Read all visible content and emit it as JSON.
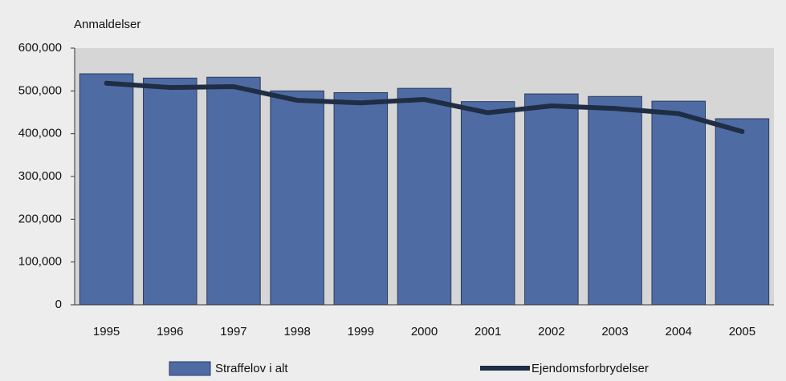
{
  "chart_data": {
    "type": "bar_line",
    "y_axis_label": "Anmaldelser",
    "categories": [
      "1995",
      "1996",
      "1997",
      "1998",
      "1999",
      "2000",
      "2001",
      "2002",
      "2003",
      "2004",
      "2005"
    ],
    "series": [
      {
        "name": "Straffelov i alt",
        "type": "bar",
        "color": "#4f6ba3",
        "values": [
          540000,
          530000,
          532000,
          500000,
          496000,
          506000,
          475000,
          493000,
          487000,
          476000,
          435000
        ]
      },
      {
        "name": "Ejendomsforbrydelser",
        "type": "line",
        "color": "#1f2d45",
        "values": [
          518000,
          508000,
          510000,
          478000,
          472000,
          480000,
          449000,
          465000,
          459000,
          447000,
          405000
        ]
      }
    ],
    "ylim": [
      0,
      600000
    ],
    "yticks": [
      0,
      {
        "value": 100000,
        "label": "100,000"
      },
      {
        "value": 200000,
        "label": "200,000"
      },
      {
        "value": 300000,
        "label": "300,000"
      },
      {
        "value": 400000,
        "label": "400,000"
      },
      {
        "value": 500000,
        "label": "500,000"
      },
      {
        "value": 600000,
        "label": "600,000"
      }
    ],
    "legend": "bottom"
  }
}
